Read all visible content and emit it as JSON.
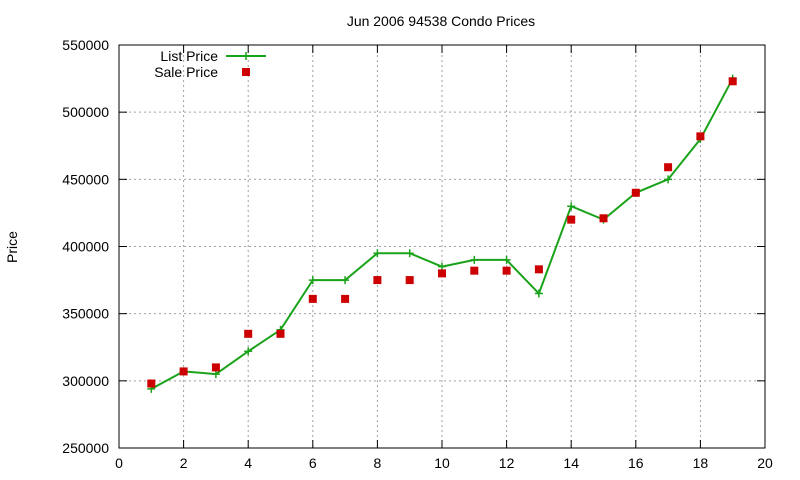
{
  "chart_data": {
    "type": "line",
    "title": "Jun 2006 94538 Condo Prices",
    "xlabel": "",
    "ylabel": "Price",
    "xlim": [
      0,
      20
    ],
    "ylim": [
      250000,
      550000
    ],
    "xticks": [
      0,
      2,
      4,
      6,
      8,
      10,
      12,
      14,
      16,
      18,
      20
    ],
    "yticks": [
      250000,
      300000,
      350000,
      400000,
      450000,
      500000,
      550000
    ],
    "grid": true,
    "legend_position": "top-left",
    "series": [
      {
        "name": "List Price",
        "style": "line+cross",
        "color": "#1aa31a",
        "x": [
          1,
          2,
          3,
          4,
          5,
          6,
          7,
          8,
          9,
          10,
          11,
          12,
          13,
          14,
          15,
          16,
          17,
          18,
          19
        ],
        "y": [
          294000,
          307000,
          305000,
          322000,
          338000,
          375000,
          375000,
          395000,
          395000,
          385000,
          390000,
          390000,
          365000,
          430000,
          420000,
          440000,
          450000,
          480000,
          525000
        ]
      },
      {
        "name": "Sale Price",
        "style": "square",
        "color": "#cc0000",
        "x": [
          1,
          2,
          3,
          4,
          5,
          6,
          7,
          8,
          9,
          10,
          11,
          12,
          13,
          14,
          15,
          16,
          17,
          18,
          19
        ],
        "y": [
          298000,
          307000,
          310000,
          335000,
          335000,
          361000,
          361000,
          375000,
          375000,
          380000,
          382000,
          382000,
          383000,
          420000,
          421000,
          440000,
          459000,
          482000,
          523000
        ]
      }
    ]
  }
}
